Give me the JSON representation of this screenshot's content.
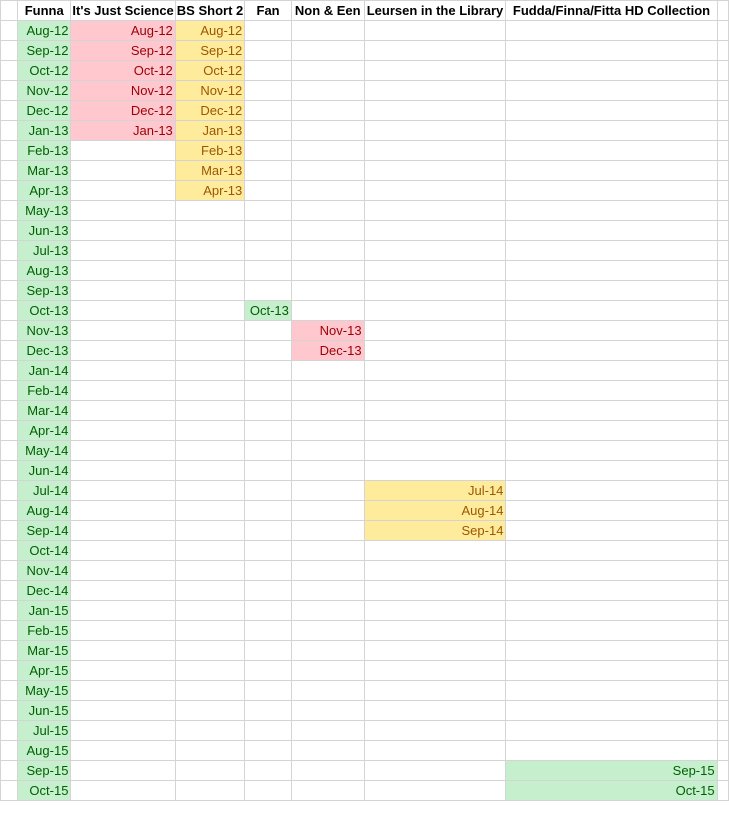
{
  "colors": {
    "green_fill": "#c6efce",
    "green_text": "#006100",
    "red_fill": "#ffc7ce",
    "red_text": "#9c0006",
    "yellow_fill": "#ffeb9c",
    "yellow_text": "#9c5700",
    "gridline": "#d4d4d4"
  },
  "headers": [
    "Funna",
    "It's Just Science",
    "BS Short 2",
    "Fan",
    "Non & Een",
    "Leursen in the Library",
    "Fudda/Finna/Fitta HD Collection"
  ],
  "funna": [
    "Aug-12",
    "Sep-12",
    "Oct-12",
    "Nov-12",
    "Dec-12",
    "Jan-13",
    "Feb-13",
    "Mar-13",
    "Apr-13",
    "May-13",
    "Jun-13",
    "Jul-13",
    "Aug-13",
    "Sep-13",
    "Oct-13",
    "Nov-13",
    "Dec-13",
    "Jan-14",
    "Feb-14",
    "Mar-14",
    "Apr-14",
    "May-14",
    "Jun-14",
    "Jul-14",
    "Aug-14",
    "Sep-14",
    "Oct-14",
    "Nov-14",
    "Dec-14",
    "Jan-15",
    "Feb-15",
    "Mar-15",
    "Apr-15",
    "May-15",
    "Jun-15",
    "Jul-15",
    "Aug-15",
    "Sep-15",
    "Oct-15"
  ],
  "its_just_science": [
    "Aug-12",
    "Sep-12",
    "Oct-12",
    "Nov-12",
    "Dec-12",
    "Jan-13"
  ],
  "bs_short_2": [
    "Aug-12",
    "Sep-12",
    "Oct-12",
    "Nov-12",
    "Dec-12",
    "Jan-13",
    "Feb-13",
    "Mar-13",
    "Apr-13"
  ],
  "fan": [
    "Oct-13"
  ],
  "non_een": [
    "Nov-13",
    "Dec-13"
  ],
  "leursen": [
    "Jul-14",
    "Aug-14",
    "Sep-14"
  ],
  "fudda": [
    "Sep-15",
    "Oct-15"
  ]
}
